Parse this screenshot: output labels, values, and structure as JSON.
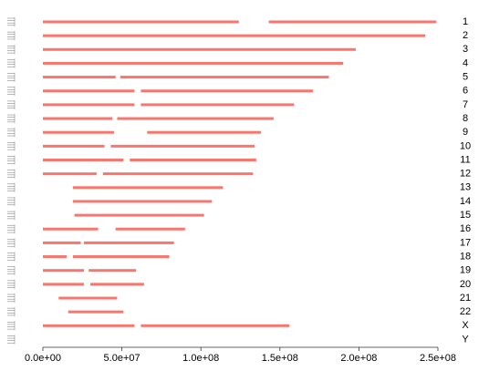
{
  "chart_data": {
    "type": "segment",
    "color": "#f8766d",
    "xlim": [
      0,
      250000000
    ],
    "xticks": [
      {
        "value": 0,
        "label": "0.0e+00"
      },
      {
        "value": 50000000,
        "label": "5.0e+07"
      },
      {
        "value": 100000000,
        "label": "1.0e+08"
      },
      {
        "value": 150000000,
        "label": "1.5e+08"
      },
      {
        "value": 200000000,
        "label": "2.0e+08"
      },
      {
        "value": 250000000,
        "label": "2.5e+08"
      }
    ],
    "series": [
      {
        "name": "1",
        "segments": [
          [
            0,
            124000000
          ],
          [
            143000000,
            249000000
          ]
        ]
      },
      {
        "name": "2",
        "segments": [
          [
            0,
            242000000
          ]
        ]
      },
      {
        "name": "3",
        "segments": [
          [
            0,
            198000000
          ]
        ]
      },
      {
        "name": "4",
        "segments": [
          [
            0,
            190000000
          ]
        ]
      },
      {
        "name": "5",
        "segments": [
          [
            0,
            46000000
          ],
          [
            49000000,
            181000000
          ]
        ]
      },
      {
        "name": "6",
        "segments": [
          [
            0,
            58000000
          ],
          [
            62000000,
            171000000
          ]
        ]
      },
      {
        "name": "7",
        "segments": [
          [
            0,
            58000000
          ],
          [
            62000000,
            159000000
          ]
        ]
      },
      {
        "name": "8",
        "segments": [
          [
            0,
            44000000
          ],
          [
            47000000,
            146000000
          ]
        ]
      },
      {
        "name": "9",
        "segments": [
          [
            0,
            45000000
          ],
          [
            66000000,
            138000000
          ]
        ]
      },
      {
        "name": "10",
        "segments": [
          [
            0,
            39000000
          ],
          [
            43000000,
            134000000
          ]
        ]
      },
      {
        "name": "11",
        "segments": [
          [
            0,
            51000000
          ],
          [
            55000000,
            135000000
          ]
        ]
      },
      {
        "name": "12",
        "segments": [
          [
            0,
            34000000
          ],
          [
            38000000,
            133000000
          ]
        ]
      },
      {
        "name": "13",
        "segments": [
          [
            19000000,
            114000000
          ]
        ]
      },
      {
        "name": "14",
        "segments": [
          [
            19000000,
            107000000
          ]
        ]
      },
      {
        "name": "15",
        "segments": [
          [
            20000000,
            102000000
          ]
        ]
      },
      {
        "name": "16",
        "segments": [
          [
            0,
            35000000
          ],
          [
            46000000,
            90000000
          ]
        ]
      },
      {
        "name": "17",
        "segments": [
          [
            0,
            24000000
          ],
          [
            26000000,
            83000000
          ]
        ]
      },
      {
        "name": "18",
        "segments": [
          [
            0,
            15000000
          ],
          [
            19000000,
            80000000
          ]
        ]
      },
      {
        "name": "19",
        "segments": [
          [
            0,
            26000000
          ],
          [
            29000000,
            59000000
          ]
        ]
      },
      {
        "name": "20",
        "segments": [
          [
            0,
            26000000
          ],
          [
            30000000,
            64000000
          ]
        ]
      },
      {
        "name": "21",
        "segments": [
          [
            10000000,
            47000000
          ]
        ]
      },
      {
        "name": "22",
        "segments": [
          [
            16000000,
            51000000
          ]
        ]
      },
      {
        "name": "X",
        "segments": [
          [
            0,
            58000000
          ],
          [
            62000000,
            156000000
          ]
        ]
      },
      {
        "name": "Y",
        "segments": []
      }
    ]
  }
}
